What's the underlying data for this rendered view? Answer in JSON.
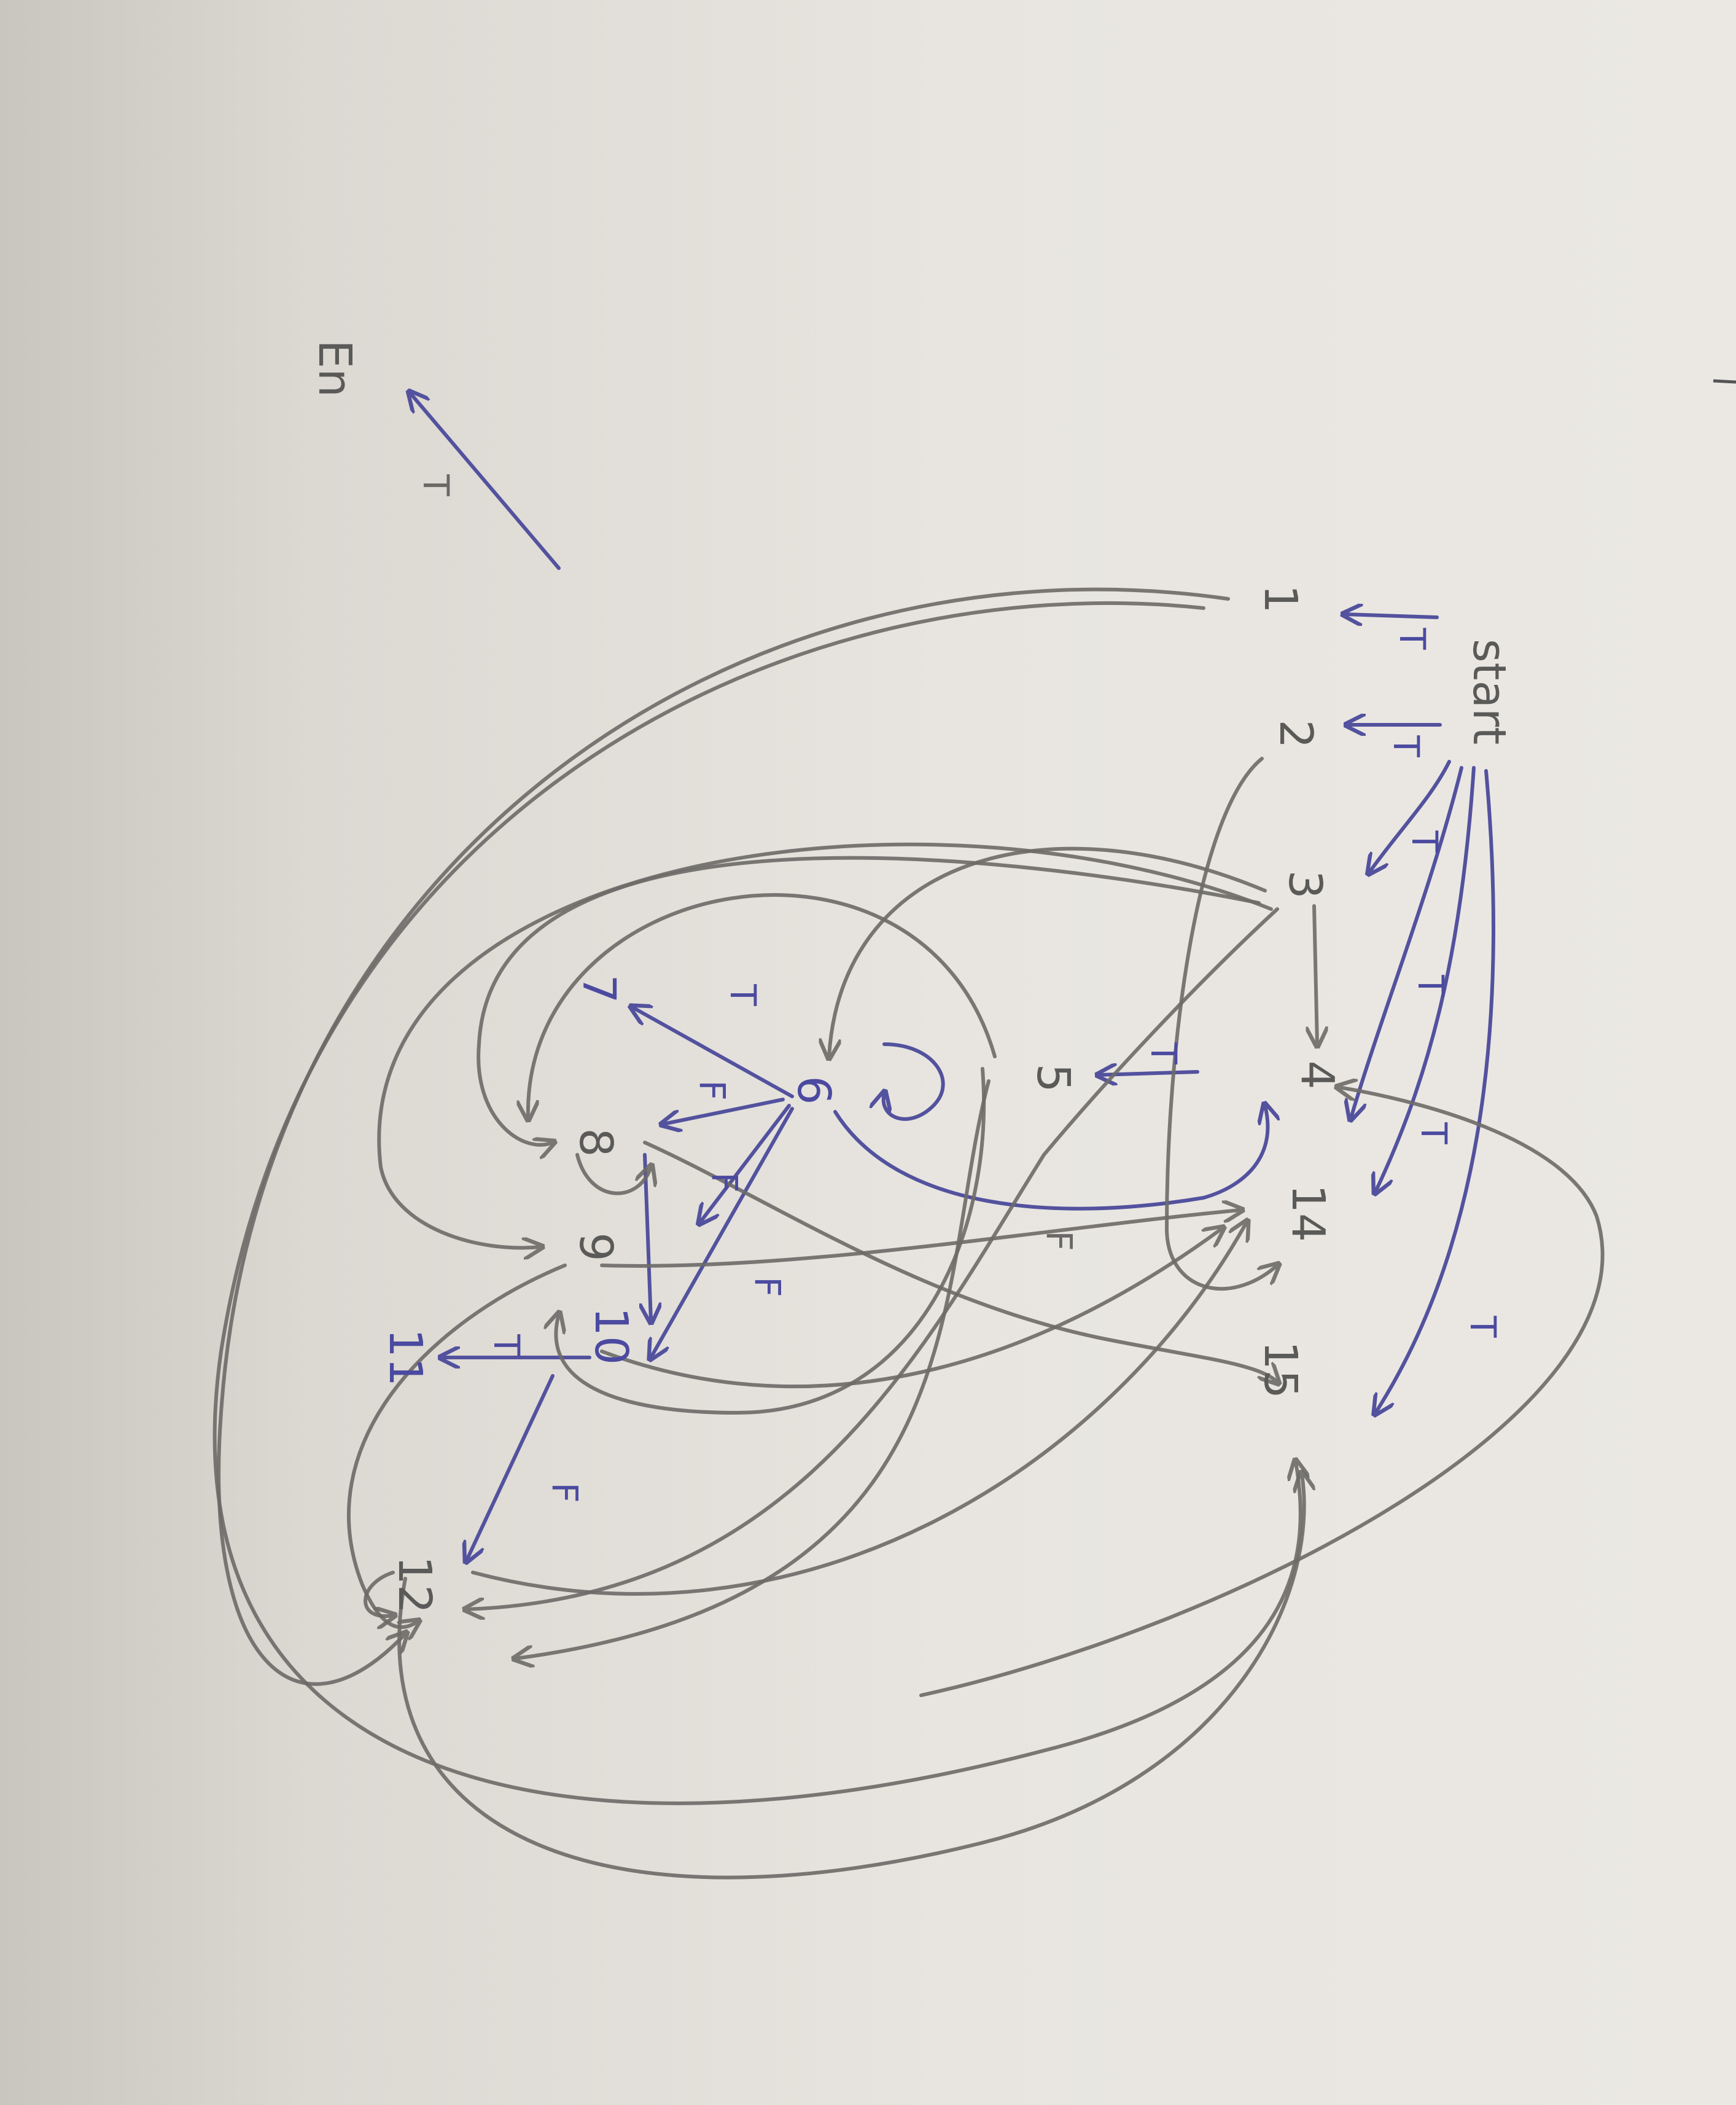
{
  "diagram": {
    "colors": {
      "paper": "#e7e4df",
      "shadow": "#c9c5bf",
      "blue_pen": "#53529e",
      "pencil": "#6d6b68"
    },
    "nodes": {
      "start": "start",
      "end": "En",
      "n1": "1",
      "n2": "2",
      "n3": "3",
      "n4": "4",
      "n5": "5",
      "n6": "6",
      "n7": "7",
      "n8": "8",
      "n9": "9",
      "n10": "10",
      "n11": "11",
      "n12": "12",
      "n14": "14",
      "n15": "15"
    },
    "edge_labels": {
      "true": "T",
      "false": "F"
    }
  }
}
